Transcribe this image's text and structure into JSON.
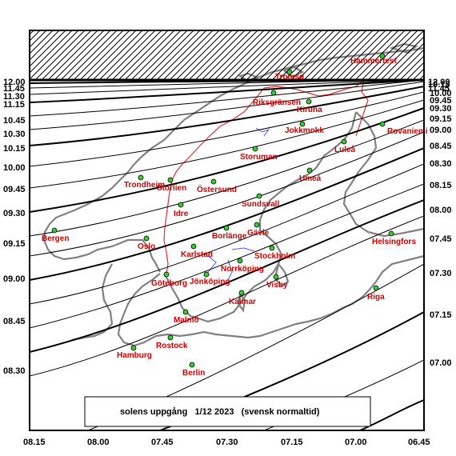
{
  "caption": "solens uppgång   1/12 2023   (svensk normaltid)",
  "left_axis_labels": [
    "12.00",
    "11.45",
    "11.30",
    "11.15",
    "10.45",
    "10.30",
    "10.15",
    "10.00",
    "09.45",
    "09.30",
    "09.15",
    "09.00",
    "08.45",
    "08.30"
  ],
  "right_axis_labels": [
    "12.00",
    "11.45",
    "10.15",
    "10.00",
    "09.45",
    "09.30",
    "09.15",
    "09.00",
    "08.45",
    "08.30",
    "08.15",
    "08.00",
    "07.45",
    "07.30",
    "07.15",
    "07.00"
  ],
  "bottom_axis_labels": [
    "08.15",
    "08.00",
    "07.45",
    "07.30",
    "07.15",
    "07.00",
    "06.45"
  ],
  "cities": [
    "Hammerfest",
    "Tromsø",
    "Riksgränsen",
    "Kiruna",
    "Jokkmokk",
    "Rovaniemi",
    "Luleå",
    "Storuman",
    "Umeå",
    "Trondheim",
    "Storlien",
    "Östersund",
    "Sundsvall",
    "Idre",
    "Bergen",
    "Oslo",
    "Borlänge",
    "Gävle",
    "Helsingfors",
    "Karlstad",
    "Stockholm",
    "Norrköping",
    "Göteborg",
    "Jönköping",
    "Visby",
    "Kalmar",
    "Riga",
    "Malmö",
    "Rostock",
    "Hamburg",
    "Berlin"
  ],
  "colors": {
    "sea_land_outline": "#808080",
    "border": "#e03030",
    "city_label": "#cc0000",
    "lake": "#5555dd",
    "marker": "#33cc33"
  }
}
